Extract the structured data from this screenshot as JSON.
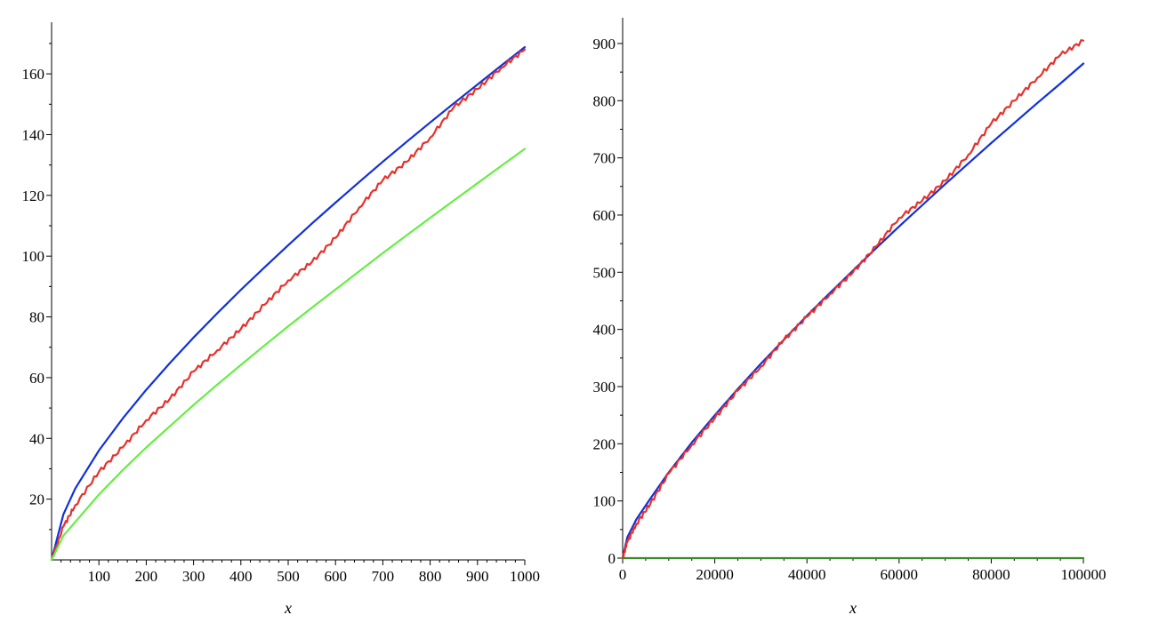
{
  "colors": {
    "blue": "#1030dd",
    "red": "#e8302a",
    "green": "#66ee44",
    "dark_green": "#3a8a2a"
  },
  "chart_data": [
    {
      "type": "line",
      "title": "",
      "xlabel": "x",
      "ylabel": "",
      "xlim": [
        0,
        1000
      ],
      "ylim": [
        0,
        177
      ],
      "x_ticks": [
        "100",
        "200",
        "300",
        "400",
        "500",
        "600",
        "700",
        "800",
        "900",
        "1000"
      ],
      "y_ticks": [
        "20",
        "40",
        "60",
        "80",
        "100",
        "120",
        "140",
        "160"
      ],
      "grid": false,
      "series": [
        {
          "color": "blue",
          "x": [
            0,
            25,
            50,
            100,
            150,
            200,
            250,
            300,
            350,
            400,
            450,
            500,
            550,
            600,
            650,
            700,
            750,
            800,
            850,
            900,
            950,
            1000
          ],
          "y": [
            0,
            15,
            23.5,
            36,
            46.5,
            56,
            64.8,
            73.2,
            81.2,
            88.9,
            96.3,
            103.6,
            110.7,
            117.6,
            124.4,
            131.1,
            137.6,
            144,
            150.3,
            156.5,
            162.7,
            168.8
          ]
        },
        {
          "color": "red",
          "x": [
            0,
            25,
            50,
            100,
            150,
            200,
            250,
            300,
            350,
            400,
            450,
            500,
            550,
            600,
            650,
            700,
            750,
            800,
            850,
            900,
            950,
            1000
          ],
          "y": [
            0,
            11,
            18,
            29,
            37,
            46,
            53,
            62,
            69,
            76,
            84,
            92,
            98,
            106,
            116,
            125,
            131,
            139,
            149,
            155,
            162,
            168
          ]
        },
        {
          "color": "green",
          "x": [
            0,
            25,
            50,
            100,
            150,
            200,
            250,
            300,
            350,
            400,
            450,
            500,
            550,
            600,
            650,
            700,
            750,
            800,
            850,
            900,
            950,
            1000
          ],
          "y": [
            0,
            8,
            12.5,
            21.5,
            29.5,
            37,
            44,
            51,
            57.7,
            64.2,
            70.6,
            76.9,
            83,
            89,
            95,
            101,
            106.8,
            112.6,
            118.3,
            124,
            129.7,
            135.3
          ]
        }
      ]
    },
    {
      "type": "line",
      "title": "",
      "xlabel": "x",
      "ylabel": "",
      "xlim": [
        0,
        100000
      ],
      "ylim": [
        0,
        945
      ],
      "x_ticks": [
        "0",
        "20000",
        "40000",
        "60000",
        "80000",
        "100000"
      ],
      "y_ticks": [
        "0",
        "100",
        "200",
        "300",
        "400",
        "500",
        "600",
        "700",
        "800",
        "900"
      ],
      "grid": false,
      "series": [
        {
          "color": "blue",
          "x": [
            0,
            1000,
            3000,
            6000,
            10000,
            15000,
            20000,
            25000,
            30000,
            35000,
            40000,
            45000,
            50000,
            55000,
            60000,
            65000,
            70000,
            75000,
            80000,
            85000,
            90000,
            95000,
            100000
          ],
          "y": [
            0,
            36,
            68,
            104,
            150,
            202,
            250,
            296,
            340,
            382,
            424,
            464,
            503,
            542,
            580,
            617,
            654,
            690,
            726,
            761,
            796,
            830,
            865
          ]
        },
        {
          "color": "red",
          "x": [
            0,
            1000,
            3000,
            6000,
            10000,
            15000,
            20000,
            25000,
            30000,
            35000,
            40000,
            45000,
            50000,
            55000,
            60000,
            65000,
            70000,
            75000,
            80000,
            85000,
            90000,
            95000,
            100000
          ],
          "y": [
            0,
            28,
            60,
            95,
            148,
            198,
            245,
            293,
            335,
            382,
            422,
            462,
            500,
            545,
            595,
            625,
            660,
            705,
            760,
            800,
            840,
            880,
            905
          ]
        },
        {
          "color": "dark_green",
          "x": [
            0,
            100000
          ],
          "y": [
            0,
            0
          ]
        }
      ]
    }
  ]
}
